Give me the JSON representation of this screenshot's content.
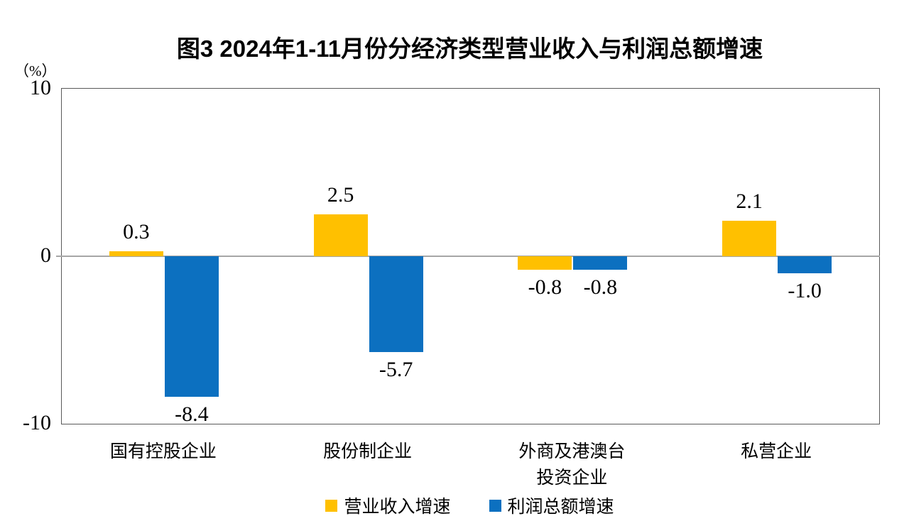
{
  "figure": {
    "unit_label": "（%）"
  },
  "chart_data": {
    "type": "bar",
    "title": "图3 2024年1-11月份分经济类型营业收入与利润总额增速",
    "unit_label": "（%）",
    "categories": [
      "国有控股企业",
      "股份制企业",
      "外商及港澳台\n投资企业",
      "私营企业"
    ],
    "series": [
      {
        "name": "营业收入增速",
        "color": "#FFC000",
        "values": [
          0.3,
          2.5,
          -0.8,
          2.1
        ]
      },
      {
        "name": "利润总额增速",
        "color": "#0C70C0",
        "values": [
          -8.4,
          -5.7,
          -0.8,
          -1.0
        ]
      }
    ],
    "ylim": [
      -10,
      10
    ],
    "yticks": [
      10,
      0,
      -10
    ],
    "grid": false,
    "legend_position": "bottom",
    "value_labels": true,
    "frame_color": "#595959",
    "zero_line_color": "#a6a6a6"
  }
}
